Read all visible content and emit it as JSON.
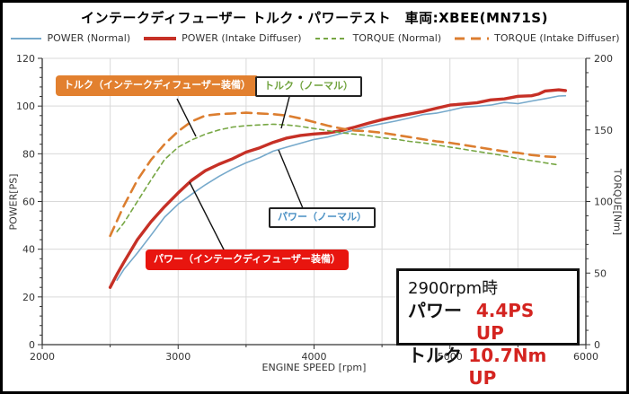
{
  "title": "インテークディフューザー トルク・パワーテスト　車両:XBEE(MN71S)",
  "legend": {
    "items": [
      {
        "label": "POWER (Normal)",
        "color": "#76A9CB",
        "width": 2,
        "dash": ""
      },
      {
        "label": "POWER (Intake Diffuser)",
        "color": "#C63026",
        "width": 4,
        "dash": ""
      },
      {
        "label": "TORQUE (Normal)",
        "color": "#77A744",
        "width": 2,
        "dash": "5,4"
      },
      {
        "label": "TORQUE (Intake Diffuser)",
        "color": "#DC7E30",
        "width": 3,
        "dash": "11,7"
      }
    ]
  },
  "annotations": {
    "torque_id": {
      "text": "トルク（インテークディフューザー装備）",
      "bg": "#E2802F",
      "fg": "#FFFFFF"
    },
    "torque_n": {
      "text": "トルク（ノーマル）",
      "bg": "#FFFFFF",
      "fg": "#6FA23C",
      "border": "#222222"
    },
    "power_n": {
      "text": "パワー（ノーマル）",
      "bg": "#FFFFFF",
      "fg": "#4A90C4",
      "border": "#222222"
    },
    "power_id": {
      "text": "パワー（インテークディフューザー装備）",
      "bg": "#E8150F",
      "fg": "#FFFFFF"
    }
  },
  "info_box": {
    "title": "2900rpm時",
    "power_label": "パワー",
    "power_value": "4.4PS UP",
    "torque_label": "トルク",
    "torque_value": "10.7Nm UP",
    "value_color": "#D42420"
  },
  "chart_data": {
    "type": "line",
    "title": "インテークディフューザー トルク・パワーテスト　車両:XBEE(MN71S)",
    "xlabel": "ENGINE SPEED [rpm]",
    "ylabel_left": "POWER[PS]",
    "ylabel_right": "TORQUE[Nm]",
    "x_range": [
      2000,
      6000
    ],
    "y_left_range": [
      0,
      120
    ],
    "y_right_range": [
      0,
      200
    ],
    "x_ticks": [
      2000,
      3000,
      4000,
      5000,
      6000
    ],
    "x_minor_step": 500,
    "y_left_ticks": [
      0,
      20,
      40,
      60,
      80,
      100,
      120
    ],
    "y_left_minor_step": 4,
    "y_right_ticks": [
      0,
      50,
      100,
      150,
      200
    ],
    "y_right_minor_step": 10,
    "grid": true,
    "legend_position": "top",
    "series": [
      {
        "id": "power-normal",
        "name": "POWER (Normal)",
        "axis": "left",
        "color": "#76A9CB",
        "width": 1.6,
        "dash": "",
        "x": [
          2550,
          2600,
          2700,
          2800,
          2900,
          3000,
          3100,
          3200,
          3300,
          3400,
          3500,
          3600,
          3700,
          3800,
          3900,
          4000,
          4100,
          4200,
          4300,
          4400,
          4500,
          4600,
          4700,
          4800,
          4900,
          5000,
          5100,
          5200,
          5300,
          5400,
          5500,
          5600,
          5700,
          5800,
          5850
        ],
        "y": [
          27,
          31.5,
          38.4,
          45.8,
          53.4,
          58.9,
          63.1,
          67,
          70.5,
          73.6,
          76.2,
          78.4,
          81.1,
          82.8,
          84.4,
          86,
          87,
          88.5,
          90,
          91.5,
          92.6,
          93.7,
          95,
          96.4,
          97,
          98.2,
          99.5,
          99.9,
          100.4,
          101.5,
          101,
          102.1,
          103.1,
          104.2,
          104.3
        ]
      },
      {
        "id": "power-diffuser",
        "name": "POWER (Intake Diffuser)",
        "axis": "left",
        "color": "#C63026",
        "width": 3.4,
        "dash": "",
        "x": [
          2500,
          2550,
          2600,
          2700,
          2800,
          2900,
          3000,
          3100,
          3200,
          3300,
          3400,
          3500,
          3600,
          3700,
          3800,
          3900,
          4000,
          4100,
          4200,
          4300,
          4400,
          4500,
          4600,
          4700,
          4800,
          4900,
          5000,
          5100,
          5200,
          5300,
          5400,
          5500,
          5600,
          5650,
          5700,
          5800,
          5850
        ],
        "y": [
          24,
          29.5,
          34.5,
          44,
          51.5,
          57.8,
          63.6,
          68.9,
          72.9,
          75.6,
          77.9,
          80.7,
          82.5,
          84.8,
          86.6,
          87.7,
          88.3,
          88.7,
          89.7,
          91.2,
          92.8,
          94.3,
          95.5,
          96.6,
          97.7,
          99.1,
          100.4,
          100.9,
          101.4,
          102.6,
          103,
          104.1,
          104.3,
          105,
          106.3,
          106.8,
          106.5
        ]
      },
      {
        "id": "torque-normal",
        "name": "TORQUE (Normal)",
        "axis": "right",
        "color": "#77A744",
        "width": 1.6,
        "dash": "5,4",
        "x": [
          2550,
          2600,
          2700,
          2800,
          2900,
          3000,
          3100,
          3200,
          3300,
          3400,
          3500,
          3600,
          3700,
          3800,
          3900,
          4000,
          4100,
          4200,
          4300,
          4400,
          4500,
          4600,
          4700,
          4800,
          4900,
          5000,
          5100,
          5200,
          5300,
          5400,
          5500,
          5600,
          5700,
          5800
        ],
        "y": [
          79,
          85,
          100,
          115,
          129.3,
          138,
          143,
          147,
          150,
          152,
          153,
          153.5,
          154,
          153.5,
          152.5,
          151,
          149.5,
          148,
          147,
          146,
          144.5,
          143.5,
          142,
          141,
          139.5,
          138,
          136.5,
          135,
          133.5,
          132,
          130,
          128.5,
          127,
          125.5
        ]
      },
      {
        "id": "torque-diffuser",
        "name": "TORQUE (Intake Diffuser)",
        "axis": "right",
        "color": "#DC7E30",
        "width": 2.6,
        "dash": "11,7",
        "x": [
          2500,
          2600,
          2700,
          2800,
          2900,
          3000,
          3100,
          3200,
          3300,
          3400,
          3500,
          3600,
          3700,
          3800,
          3900,
          4000,
          4100,
          4200,
          4300,
          4400,
          4500,
          4600,
          4700,
          4800,
          4900,
          5000,
          5100,
          5200,
          5300,
          5400,
          5500,
          5600,
          5700,
          5800
        ],
        "y": [
          76,
          97,
          115,
          129,
          140,
          149,
          156,
          160,
          161,
          161.5,
          162,
          161.5,
          161,
          160,
          158,
          155.5,
          153,
          151,
          149.5,
          149,
          148,
          146.5,
          145,
          143.5,
          142,
          141,
          139.5,
          138,
          136.5,
          135,
          134,
          132.5,
          131.5,
          131
        ]
      }
    ]
  }
}
